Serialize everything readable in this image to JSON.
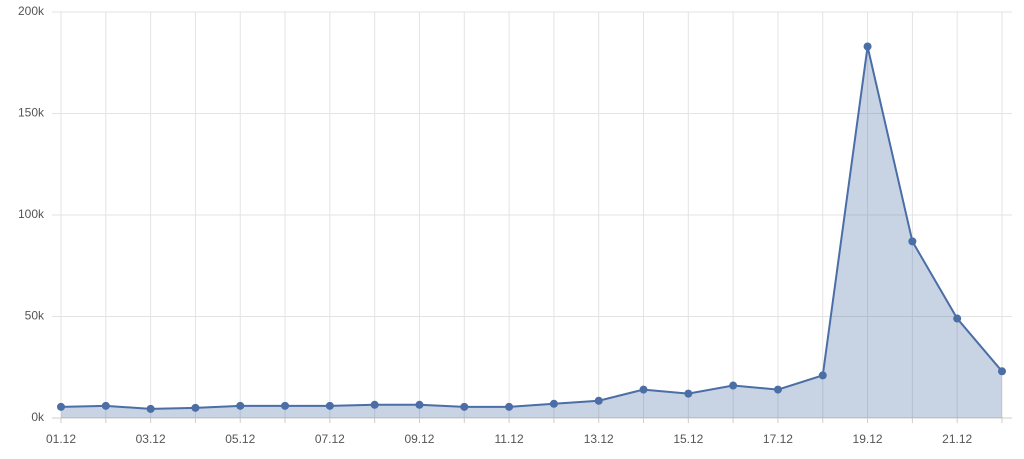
{
  "chart_data": {
    "type": "area",
    "categories": [
      "01.12",
      null,
      "03.12",
      null,
      "05.12",
      null,
      "07.12",
      null,
      "09.12",
      null,
      "11.12",
      null,
      "13.12",
      null,
      "15.12",
      null,
      "17.12",
      null,
      "19.12",
      null,
      "21.12",
      null
    ],
    "series": [
      {
        "color": "#4a6ea5",
        "values": [
          5500,
          6000,
          4500,
          5000,
          6000,
          6000,
          6000,
          6500,
          6500,
          5500,
          5500,
          7000,
          8500,
          14000,
          12000,
          16000,
          14000,
          21000,
          183000,
          87000,
          49000,
          23000
        ]
      }
    ],
    "ylim": [
      0,
      200000
    ],
    "yticks": [
      {
        "value": 0,
        "label": "0k"
      },
      {
        "value": 50000,
        "label": "50k"
      },
      {
        "value": 100000,
        "label": "100k"
      },
      {
        "value": 150000,
        "label": "150k"
      },
      {
        "value": 200000,
        "label": "200k"
      }
    ],
    "grid": true
  }
}
